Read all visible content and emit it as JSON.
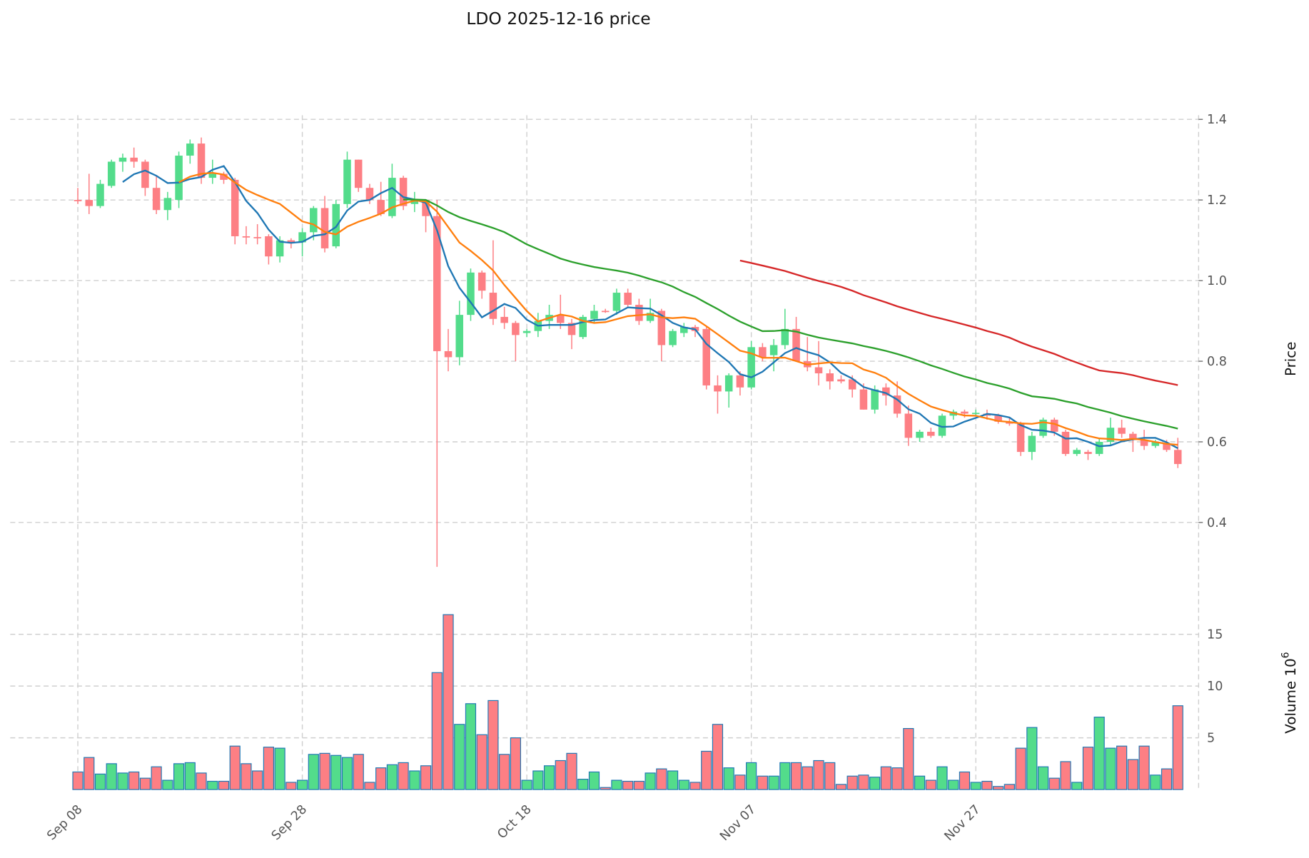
{
  "chart_data": {
    "type": "candlestick",
    "title": "LDO  2025-12-16  price",
    "ylabel": "Price",
    "volume_label": "Volume",
    "volume_unit": "10",
    "volume_exp": "6",
    "start_date": "2025-09-08",
    "ylim": [
      0.25,
      1.4
    ],
    "yticks": [
      "0.4",
      "0.6",
      "0.8",
      "1.0",
      "1.2",
      "1.4"
    ],
    "vol_ylim": [
      0,
      17
    ],
    "vol_ticks": [
      "5",
      "10",
      "15"
    ],
    "xticks": [
      {
        "i": 0,
        "label": "Sep 08"
      },
      {
        "i": 20,
        "label": "Sep 28"
      },
      {
        "i": 40,
        "label": "Oct 18"
      },
      {
        "i": 60,
        "label": "Nov 07"
      },
      {
        "i": 80,
        "label": "Nov 27"
      }
    ],
    "ma_windows": [
      5,
      10,
      30,
      60
    ],
    "colors": {
      "up": "#53dc8b",
      "down": "#fd7f84",
      "ma5": "#1f77b4",
      "ma10": "#ff7f0e",
      "ma30": "#2ca02c",
      "ma60": "#d62728",
      "edge": "#1f77b4"
    },
    "ohlc": [
      [
        1.2,
        1.23,
        1.19,
        1.198
      ],
      [
        1.2,
        1.265,
        1.165,
        1.185
      ],
      [
        1.185,
        1.25,
        1.18,
        1.24
      ],
      [
        1.235,
        1.3,
        1.23,
        1.295
      ],
      [
        1.295,
        1.315,
        1.27,
        1.305
      ],
      [
        1.305,
        1.33,
        1.28,
        1.295
      ],
      [
        1.295,
        1.3,
        1.21,
        1.23
      ],
      [
        1.23,
        1.26,
        1.165,
        1.175
      ],
      [
        1.175,
        1.22,
        1.15,
        1.205
      ],
      [
        1.2,
        1.32,
        1.18,
        1.31
      ],
      [
        1.31,
        1.35,
        1.29,
        1.34
      ],
      [
        1.34,
        1.355,
        1.24,
        1.255
      ],
      [
        1.255,
        1.3,
        1.24,
        1.265
      ],
      [
        1.265,
        1.27,
        1.24,
        1.25
      ],
      [
        1.25,
        1.255,
        1.09,
        1.11
      ],
      [
        1.11,
        1.135,
        1.09,
        1.108
      ],
      [
        1.108,
        1.14,
        1.09,
        1.105
      ],
      [
        1.11,
        1.115,
        1.04,
        1.06
      ],
      [
        1.06,
        1.11,
        1.045,
        1.1
      ],
      [
        1.1,
        1.105,
        1.08,
        1.095
      ],
      [
        1.095,
        1.13,
        1.06,
        1.12
      ],
      [
        1.12,
        1.185,
        1.1,
        1.18
      ],
      [
        1.18,
        1.21,
        1.07,
        1.08
      ],
      [
        1.085,
        1.2,
        1.08,
        1.19
      ],
      [
        1.19,
        1.32,
        1.18,
        1.3
      ],
      [
        1.3,
        1.3,
        1.22,
        1.23
      ],
      [
        1.23,
        1.24,
        1.19,
        1.2
      ],
      [
        1.2,
        1.245,
        1.16,
        1.165
      ],
      [
        1.16,
        1.29,
        1.155,
        1.255
      ],
      [
        1.255,
        1.26,
        1.175,
        1.185
      ],
      [
        1.19,
        1.22,
        1.17,
        1.2
      ],
      [
        1.2,
        1.2,
        1.12,
        1.16
      ],
      [
        1.16,
        1.2,
        0.29,
        0.825
      ],
      [
        0.825,
        0.88,
        0.775,
        0.81
      ],
      [
        0.81,
        0.95,
        0.79,
        0.915
      ],
      [
        0.915,
        1.03,
        0.9,
        1.02
      ],
      [
        1.02,
        1.025,
        0.955,
        0.975
      ],
      [
        0.97,
        1.1,
        0.89,
        0.905
      ],
      [
        0.91,
        0.935,
        0.88,
        0.895
      ],
      [
        0.895,
        0.9,
        0.8,
        0.865
      ],
      [
        0.87,
        0.88,
        0.86,
        0.875
      ],
      [
        0.875,
        0.92,
        0.86,
        0.9
      ],
      [
        0.9,
        0.94,
        0.88,
        0.915
      ],
      [
        0.915,
        0.965,
        0.88,
        0.895
      ],
      [
        0.895,
        0.905,
        0.83,
        0.865
      ],
      [
        0.86,
        0.915,
        0.855,
        0.91
      ],
      [
        0.905,
        0.94,
        0.895,
        0.925
      ],
      [
        0.925,
        0.93,
        0.92,
        0.923
      ],
      [
        0.925,
        0.98,
        0.915,
        0.97
      ],
      [
        0.97,
        0.98,
        0.935,
        0.94
      ],
      [
        0.94,
        0.955,
        0.89,
        0.9
      ],
      [
        0.9,
        0.955,
        0.895,
        0.92
      ],
      [
        0.925,
        0.93,
        0.8,
        0.84
      ],
      [
        0.84,
        0.88,
        0.835,
        0.875
      ],
      [
        0.87,
        0.895,
        0.86,
        0.885
      ],
      [
        0.885,
        0.89,
        0.86,
        0.875
      ],
      [
        0.88,
        0.885,
        0.73,
        0.74
      ],
      [
        0.74,
        0.765,
        0.67,
        0.725
      ],
      [
        0.725,
        0.77,
        0.685,
        0.765
      ],
      [
        0.765,
        0.775,
        0.715,
        0.735
      ],
      [
        0.735,
        0.85,
        0.73,
        0.835
      ],
      [
        0.835,
        0.845,
        0.8,
        0.81
      ],
      [
        0.815,
        0.855,
        0.775,
        0.84
      ],
      [
        0.84,
        0.93,
        0.83,
        0.88
      ],
      [
        0.88,
        0.91,
        0.8,
        0.8
      ],
      [
        0.8,
        0.86,
        0.775,
        0.785
      ],
      [
        0.785,
        0.85,
        0.74,
        0.77
      ],
      [
        0.77,
        0.78,
        0.73,
        0.75
      ],
      [
        0.755,
        0.765,
        0.745,
        0.75
      ],
      [
        0.755,
        0.765,
        0.71,
        0.73
      ],
      [
        0.73,
        0.745,
        0.68,
        0.68
      ],
      [
        0.68,
        0.74,
        0.67,
        0.73
      ],
      [
        0.735,
        0.745,
        0.69,
        0.715
      ],
      [
        0.715,
        0.75,
        0.66,
        0.67
      ],
      [
        0.67,
        0.69,
        0.59,
        0.61
      ],
      [
        0.61,
        0.63,
        0.6,
        0.625
      ],
      [
        0.625,
        0.635,
        0.61,
        0.615
      ],
      [
        0.615,
        0.67,
        0.61,
        0.665
      ],
      [
        0.665,
        0.68,
        0.655,
        0.675
      ],
      [
        0.675,
        0.68,
        0.66,
        0.67
      ],
      [
        0.67,
        0.68,
        0.665,
        0.672
      ],
      [
        0.67,
        0.68,
        0.655,
        0.665
      ],
      [
        0.665,
        0.67,
        0.645,
        0.65
      ],
      [
        0.65,
        0.66,
        0.64,
        0.645
      ],
      [
        0.645,
        0.65,
        0.565,
        0.575
      ],
      [
        0.575,
        0.625,
        0.555,
        0.615
      ],
      [
        0.615,
        0.66,
        0.61,
        0.655
      ],
      [
        0.655,
        0.66,
        0.615,
        0.625
      ],
      [
        0.625,
        0.63,
        0.565,
        0.57
      ],
      [
        0.57,
        0.585,
        0.565,
        0.58
      ],
      [
        0.575,
        0.58,
        0.555,
        0.57
      ],
      [
        0.57,
        0.61,
        0.565,
        0.6
      ],
      [
        0.6,
        0.66,
        0.59,
        0.635
      ],
      [
        0.635,
        0.655,
        0.61,
        0.62
      ],
      [
        0.62,
        0.625,
        0.575,
        0.605
      ],
      [
        0.605,
        0.63,
        0.58,
        0.59
      ],
      [
        0.59,
        0.605,
        0.585,
        0.6
      ],
      [
        0.595,
        0.605,
        0.575,
        0.58
      ],
      [
        0.58,
        0.61,
        0.535,
        0.545
      ]
    ],
    "volume": [
      1.7,
      3.1,
      1.5,
      2.5,
      1.6,
      1.7,
      1.1,
      2.2,
      0.9,
      2.5,
      2.6,
      1.6,
      0.8,
      0.8,
      4.2,
      2.5,
      1.8,
      4.1,
      4.0,
      0.7,
      0.9,
      3.4,
      3.5,
      3.3,
      3.1,
      3.4,
      0.7,
      2.1,
      2.4,
      2.6,
      1.8,
      2.3,
      11.3,
      16.9,
      6.3,
      8.3,
      5.3,
      8.6,
      3.4,
      5.0,
      0.9,
      1.8,
      2.3,
      2.8,
      3.5,
      1.0,
      1.7,
      0.2,
      0.9,
      0.8,
      0.8,
      1.6,
      2.0,
      1.8,
      0.9,
      0.7,
      3.7,
      6.3,
      2.1,
      1.4,
      2.6,
      1.3,
      1.3,
      2.6,
      2.6,
      2.2,
      2.8,
      2.6,
      0.5,
      1.3,
      1.4,
      1.2,
      2.2,
      2.1,
      5.9,
      1.3,
      0.9,
      2.2,
      0.9,
      1.7,
      0.7,
      0.8,
      0.3,
      0.5,
      4.0,
      6.0,
      2.2,
      1.1,
      2.7,
      0.7,
      4.1,
      7.0,
      4.0,
      4.2,
      2.9,
      4.2,
      1.4,
      2.0,
      8.1
    ]
  }
}
